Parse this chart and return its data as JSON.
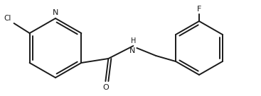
{
  "background_color": "#ffffff",
  "line_color": "#1a1a1a",
  "n_color": "#1a1a1a",
  "o_color": "#1a1a1a",
  "cl_color": "#1a1a1a",
  "f_color": "#1a1a1a",
  "line_width": 1.4,
  "figsize": [
    3.67,
    1.36
  ],
  "dpi": 100,
  "xlim": [
    0,
    367
  ],
  "ylim": [
    0,
    136
  ]
}
